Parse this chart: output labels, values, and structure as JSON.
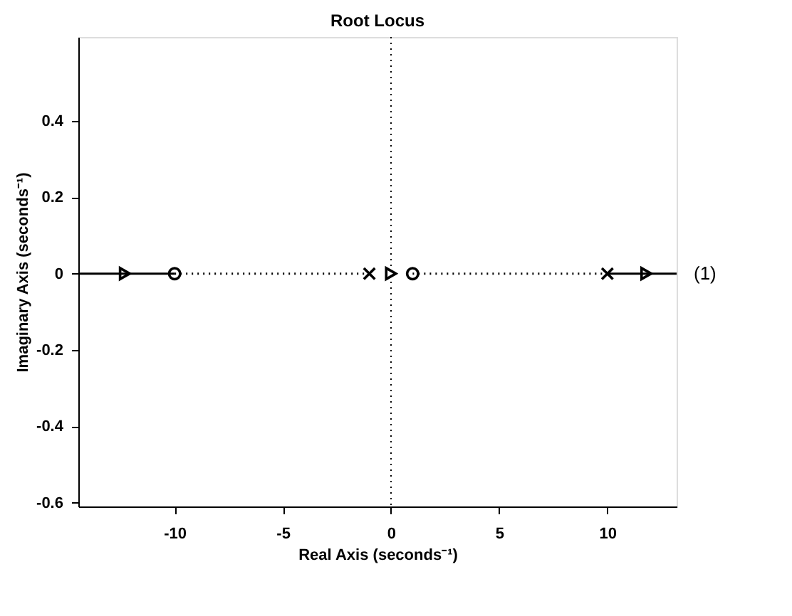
{
  "chart_data": {
    "type": "line",
    "title": "Root Locus",
    "xlabel": "Real Axis (seconds⁻¹)",
    "ylabel": "Imaginary Axis (seconds⁻¹)",
    "xlim": [
      -14.45,
      13.2
    ],
    "ylim": [
      -0.61,
      0.62
    ],
    "xticks": [
      -10,
      -5,
      0,
      5,
      10
    ],
    "yticks": [
      -0.6,
      -0.4,
      -0.2,
      0,
      0.2,
      0.4
    ],
    "grid": false,
    "series": [
      {
        "color": "#000000",
        "line_style": "solid",
        "x": [
          -14.45,
          -10
        ],
        "values": [
          0,
          0
        ]
      },
      {
        "color": "#000000",
        "line_style": "dotted",
        "x": [
          -10,
          -1
        ],
        "values": [
          0,
          0
        ]
      },
      {
        "color": "#000000",
        "line_style": "dotted",
        "x": [
          1,
          10
        ],
        "values": [
          0,
          0
        ]
      },
      {
        "color": "#000000",
        "line_style": "solid",
        "x": [
          10,
          13.2
        ],
        "values": [
          0,
          0
        ]
      },
      {
        "type": "scatter",
        "color": "#000000",
        "marker": "cross",
        "x": [
          -1,
          10
        ],
        "values": [
          0,
          0
        ]
      },
      {
        "type": "scatter",
        "color": "#000000",
        "marker": "circle",
        "x": [
          -10,
          1
        ],
        "values": [
          0,
          0
        ]
      },
      {
        "type": "scatter",
        "color": "#000000",
        "marker": "triangle",
        "x": [
          -12.3,
          0,
          11.8
        ],
        "values": [
          0,
          0,
          0
        ]
      }
    ],
    "ref_lines": [
      {
        "axis": "x",
        "value": 0,
        "color": "#000000",
        "line_style": "dotted"
      }
    ],
    "annotations": [
      "(1)"
    ]
  }
}
